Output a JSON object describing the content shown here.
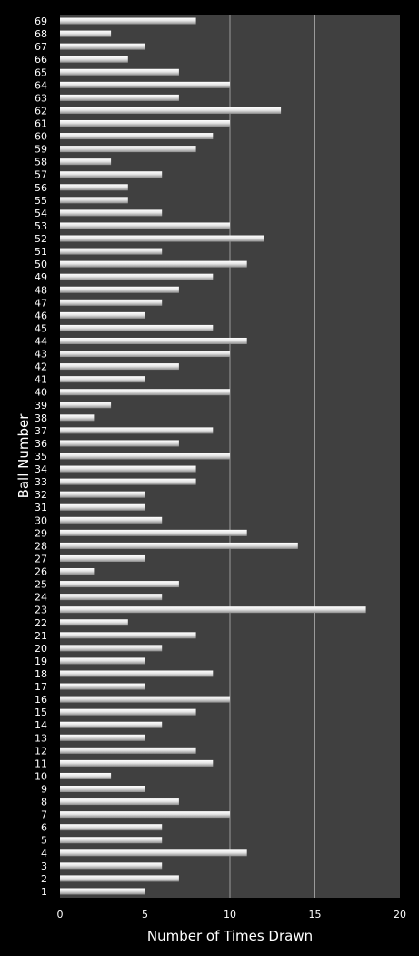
{
  "chart_data": {
    "type": "bar",
    "orientation": "horizontal",
    "title": "",
    "xlabel": "Number of Times Drawn",
    "ylabel": "Ball Number",
    "xlim": [
      0,
      20
    ],
    "x_ticks": [
      "0",
      "5",
      "10",
      "15",
      "20"
    ],
    "grid": true,
    "legend": "none",
    "colors": {
      "background": "#000000",
      "plot_area": "#404040",
      "gridline": "#9a9a9a",
      "bar": "#d9d9d9",
      "text": "#ffffff"
    },
    "categories": [
      "1",
      "2",
      "3",
      "4",
      "5",
      "6",
      "7",
      "8",
      "9",
      "10",
      "11",
      "12",
      "13",
      "14",
      "15",
      "16",
      "17",
      "18",
      "19",
      "20",
      "21",
      "22",
      "23",
      "24",
      "25",
      "26",
      "27",
      "28",
      "29",
      "30",
      "31",
      "32",
      "33",
      "34",
      "35",
      "36",
      "37",
      "38",
      "39",
      "40",
      "41",
      "42",
      "43",
      "44",
      "45",
      "46",
      "47",
      "48",
      "49",
      "50",
      "51",
      "52",
      "53",
      "54",
      "55",
      "56",
      "57",
      "58",
      "59",
      "60",
      "61",
      "62",
      "63",
      "64",
      "65",
      "66",
      "67",
      "68",
      "69"
    ],
    "values": [
      5,
      7,
      6,
      11,
      6,
      6,
      10,
      7,
      5,
      3,
      9,
      8,
      5,
      6,
      8,
      10,
      5,
      9,
      5,
      6,
      8,
      4,
      18,
      6,
      7,
      2,
      5,
      14,
      11,
      6,
      5,
      5,
      8,
      8,
      10,
      7,
      9,
      2,
      3,
      10,
      5,
      7,
      10,
      11,
      9,
      5,
      6,
      7,
      9,
      11,
      6,
      12,
      10,
      6,
      4,
      4,
      6,
      3,
      8,
      9,
      10,
      13,
      7,
      10,
      7,
      4,
      5,
      3,
      8
    ]
  }
}
